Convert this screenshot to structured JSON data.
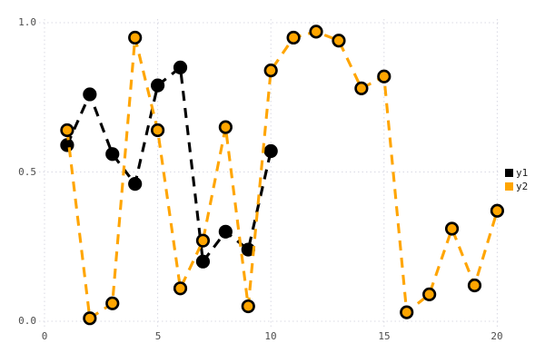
{
  "figure": {
    "background": "#ffffff",
    "grid_color": "#d9d9e3",
    "tick_label_color": "#4d4d4d"
  },
  "chart_data": {
    "type": "line",
    "title": "",
    "xlabel": "",
    "ylabel": "",
    "xlim": [
      -0.25,
      20.15
    ],
    "ylim": [
      0,
      1.0
    ],
    "grid": "dotted",
    "line_style": "dashed",
    "legend_position": "right",
    "xticks": [
      {
        "value": 0,
        "label": "0"
      },
      {
        "value": 5,
        "label": "5"
      },
      {
        "value": 10,
        "label": "10"
      },
      {
        "value": 15,
        "label": "15"
      },
      {
        "value": 20,
        "label": "20"
      }
    ],
    "yticks": [
      {
        "value": 0.0,
        "label": "0.0"
      },
      {
        "value": 0.5,
        "label": "0.5"
      },
      {
        "value": 1.0,
        "label": "1.0"
      }
    ],
    "series": [
      {
        "name": "y1",
        "color": "#000000",
        "marker_fill": "#000000",
        "marker_edge": "#000000",
        "x": [
          1,
          2,
          3,
          4,
          5,
          6,
          7,
          8,
          9,
          10
        ],
        "values": [
          0.59,
          0.76,
          0.56,
          0.46,
          0.79,
          0.85,
          0.2,
          0.3,
          0.24,
          0.57
        ]
      },
      {
        "name": "y2",
        "color": "#FFA500",
        "marker_fill": "#FFA500",
        "marker_edge": "#000000",
        "x": [
          1,
          2,
          3,
          4,
          5,
          6,
          7,
          8,
          9,
          10,
          11,
          12,
          13,
          14,
          15,
          16,
          17,
          18,
          19,
          20
        ],
        "values": [
          0.64,
          0.01,
          0.06,
          0.95,
          0.64,
          0.11,
          0.27,
          0.65,
          0.05,
          0.84,
          0.95,
          0.97,
          0.94,
          0.78,
          0.82,
          0.03,
          0.09,
          0.31,
          0.12,
          0.37
        ]
      }
    ]
  }
}
